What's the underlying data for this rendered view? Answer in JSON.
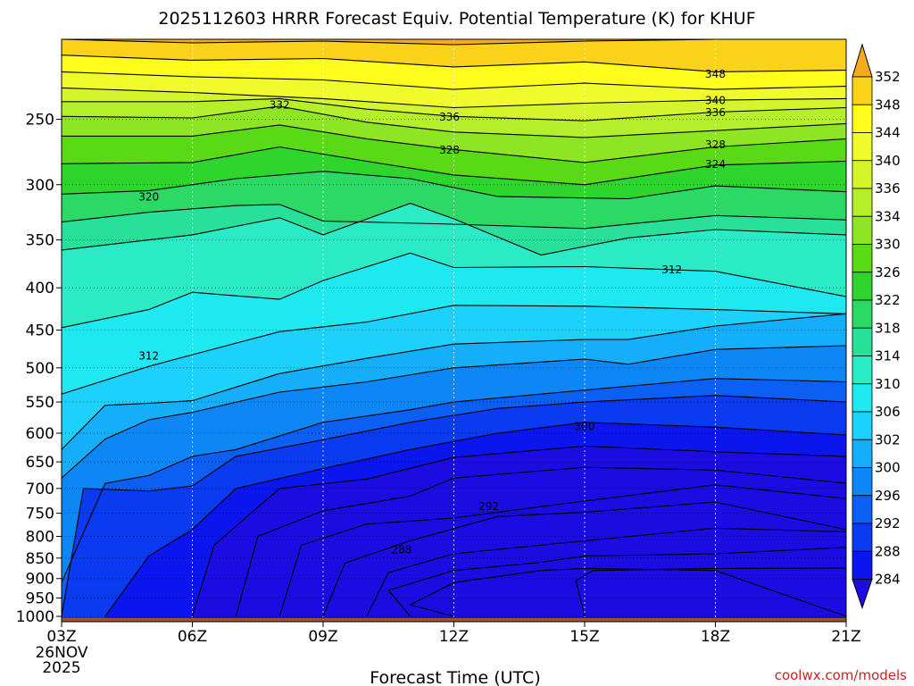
{
  "chart_data": {
    "type": "heatmap",
    "title": "2025112603 HRRR Forecast Equiv. Potential Temperature (K) for KHUF",
    "xlabel": "Forecast Time (UTC)",
    "ylabel": "",
    "x_ticks": [
      "03Z",
      "06Z",
      "09Z",
      "12Z",
      "15Z",
      "18Z",
      "21Z"
    ],
    "x_first_label_extra": [
      "26NOV",
      "2025"
    ],
    "y_scale": "log-pressure (hPa, inverted)",
    "y_ticks": [
      250,
      300,
      350,
      400,
      450,
      500,
      550,
      600,
      650,
      700,
      750,
      800,
      850,
      900,
      950,
      1000
    ],
    "ylim": [
      1015,
      200
    ],
    "grid": true,
    "grid_style": "dotted",
    "colorbar": {
      "labels": [
        352,
        348,
        344,
        340,
        336,
        334,
        330,
        326,
        322,
        318,
        314,
        310,
        306,
        302,
        300,
        296,
        292,
        288,
        284
      ],
      "colors": [
        "#f6aa1e",
        "#fbd21a",
        "#fefc1a",
        "#f1fb2c",
        "#d4f52c",
        "#b5ee2a",
        "#8ee523",
        "#5ada17",
        "#2ed52c",
        "#2bd964",
        "#29e09a",
        "#2bebc7",
        "#1fe9f0",
        "#1cd1fb",
        "#15aefa",
        "#0e87f6",
        "#0b5ff3",
        "#0a3bf0",
        "#0b15ed",
        "#1b0ce2"
      ],
      "extends": "both"
    },
    "contour_labels": [
      {
        "text": "348",
        "time": 18.0,
        "pressure": 220
      },
      {
        "text": "340",
        "time": 18.0,
        "pressure": 237
      },
      {
        "text": "336",
        "time": 18.0,
        "pressure": 245
      },
      {
        "text": "332",
        "time": 8.0,
        "pressure": 240
      },
      {
        "text": "336",
        "time": 11.9,
        "pressure": 248
      },
      {
        "text": "328",
        "time": 11.9,
        "pressure": 272
      },
      {
        "text": "328",
        "time": 18.0,
        "pressure": 268
      },
      {
        "text": "324",
        "time": 18.0,
        "pressure": 283
      },
      {
        "text": "320",
        "time": 5.0,
        "pressure": 310
      },
      {
        "text": "312",
        "time": 17.0,
        "pressure": 380
      },
      {
        "text": "312",
        "time": 5.0,
        "pressure": 483
      },
      {
        "text": "300",
        "time": 15.0,
        "pressure": 588
      },
      {
        "text": "292",
        "time": 12.8,
        "pressure": 735
      },
      {
        "text": "288",
        "time": 10.8,
        "pressure": 830
      }
    ],
    "series": [
      {
        "name": "352",
        "values": [
          [
            3,
            200
          ],
          [
            6,
            202
          ],
          [
            9,
            201
          ],
          [
            12,
            203
          ],
          [
            15,
            201
          ],
          [
            18,
            200
          ],
          [
            21,
            200
          ]
        ]
      },
      {
        "name": "348",
        "values": [
          [
            3,
            209
          ],
          [
            6,
            212
          ],
          [
            9,
            211
          ],
          [
            12,
            216
          ],
          [
            15,
            213
          ],
          [
            18,
            219
          ],
          [
            21,
            218
          ]
        ]
      },
      {
        "name": "344",
        "values": [
          [
            3,
            219
          ],
          [
            6,
            222
          ],
          [
            9,
            224
          ],
          [
            12,
            230
          ],
          [
            15,
            226
          ],
          [
            18,
            230
          ],
          [
            21,
            228
          ]
        ]
      },
      {
        "name": "340",
        "values": [
          [
            3,
            229
          ],
          [
            6,
            232
          ],
          [
            9,
            236
          ],
          [
            12,
            242
          ],
          [
            15,
            239
          ],
          [
            18,
            237
          ],
          [
            21,
            236
          ]
        ]
      },
      {
        "name": "336",
        "values": [
          [
            3,
            238
          ],
          [
            6,
            238
          ],
          [
            8,
            236
          ],
          [
            10,
            243
          ],
          [
            12,
            248
          ],
          [
            15,
            251
          ],
          [
            18,
            245
          ],
          [
            21,
            242
          ]
        ]
      },
      {
        "name": "332",
        "values": [
          [
            3,
            248
          ],
          [
            6,
            249
          ],
          [
            8,
            241
          ],
          [
            10,
            252
          ],
          [
            12,
            259
          ],
          [
            15,
            263
          ],
          [
            18,
            258
          ],
          [
            21,
            253
          ]
        ]
      },
      {
        "name": "328",
        "values": [
          [
            3,
            262
          ],
          [
            6,
            262
          ],
          [
            8,
            254
          ],
          [
            10,
            264
          ],
          [
            12,
            272
          ],
          [
            15,
            282
          ],
          [
            18,
            270
          ],
          [
            21,
            264
          ]
        ]
      },
      {
        "name": "324",
        "values": [
          [
            3,
            283
          ],
          [
            6,
            282
          ],
          [
            8,
            270
          ],
          [
            10,
            281
          ],
          [
            12,
            292
          ],
          [
            15,
            300
          ],
          [
            18,
            284
          ],
          [
            21,
            281
          ]
        ]
      },
      {
        "name": "320",
        "values": [
          [
            3,
            308
          ],
          [
            5,
            305
          ],
          [
            7,
            295
          ],
          [
            9,
            289
          ],
          [
            11,
            295
          ],
          [
            13,
            310
          ],
          [
            16,
            312
          ],
          [
            18,
            301
          ],
          [
            21,
            306
          ]
        ]
      },
      {
        "name": "316",
        "values": [
          [
            3,
            333
          ],
          [
            5,
            324
          ],
          [
            7,
            318
          ],
          [
            8,
            317
          ],
          [
            9,
            332
          ],
          [
            12,
            335
          ],
          [
            15,
            339
          ],
          [
            18,
            327
          ],
          [
            21,
            331
          ]
        ]
      },
      {
        "name": "314",
        "values": [
          [
            3,
            360
          ],
          [
            6,
            345
          ],
          [
            8,
            329
          ],
          [
            9,
            345
          ],
          [
            11,
            316
          ],
          [
            12,
            330
          ],
          [
            14,
            365
          ],
          [
            16,
            348
          ],
          [
            18,
            340
          ],
          [
            21,
            345
          ]
        ]
      },
      {
        "name": "312",
        "values": [
          [
            3,
            447
          ],
          [
            5,
            425
          ],
          [
            6,
            405
          ],
          [
            8,
            413
          ],
          [
            9,
            392
          ],
          [
            11,
            363
          ],
          [
            12,
            378
          ],
          [
            15,
            377
          ],
          [
            18,
            382
          ],
          [
            21,
            410
          ]
        ]
      },
      {
        "name": "310",
        "values": [
          [
            3,
            538
          ],
          [
            5,
            498
          ],
          [
            6,
            482
          ],
          [
            8,
            452
          ],
          [
            10,
            440
          ],
          [
            12,
            420
          ],
          [
            15,
            421
          ],
          [
            18,
            425
          ],
          [
            21,
            430
          ]
        ]
      },
      {
        "name": "308",
        "values": [
          [
            3,
            628
          ],
          [
            4,
            555
          ],
          [
            5,
            552
          ],
          [
            6,
            548
          ],
          [
            8,
            508
          ],
          [
            10,
            487
          ],
          [
            12,
            468
          ],
          [
            15,
            462
          ],
          [
            16,
            462
          ],
          [
            18,
            445
          ],
          [
            21,
            430
          ]
        ]
      },
      {
        "name": "306",
        "values": [
          [
            3,
            680
          ],
          [
            4,
            610
          ],
          [
            5,
            578
          ],
          [
            6,
            566
          ],
          [
            8,
            535
          ],
          [
            10,
            520
          ],
          [
            12,
            500
          ],
          [
            15,
            488
          ],
          [
            16,
            495
          ],
          [
            18,
            475
          ],
          [
            21,
            470
          ]
        ]
      },
      {
        "name": "304",
        "values": [
          [
            3,
            910
          ],
          [
            4,
            690
          ],
          [
            5,
            675
          ],
          [
            6,
            640
          ],
          [
            7,
            628
          ],
          [
            9,
            582
          ],
          [
            11,
            562
          ],
          [
            12,
            550
          ],
          [
            15,
            532
          ],
          [
            18,
            515
          ],
          [
            21,
            520
          ]
        ]
      },
      {
        "name": "302",
        "values": [
          [
            3,
            1000
          ],
          [
            3.5,
            700
          ],
          [
            5,
            705
          ],
          [
            6,
            695
          ],
          [
            7,
            640
          ],
          [
            9,
            611
          ],
          [
            11,
            582
          ],
          [
            13,
            560
          ],
          [
            15,
            550
          ],
          [
            18,
            540
          ],
          [
            21,
            550
          ]
        ]
      },
      {
        "name": "300",
        "values": [
          [
            4,
            1000
          ],
          [
            5,
            845
          ],
          [
            6,
            785
          ],
          [
            7,
            700
          ],
          [
            9,
            662
          ],
          [
            11,
            628
          ],
          [
            13,
            600
          ],
          [
            15,
            582
          ],
          [
            18,
            590
          ],
          [
            21,
            603
          ]
        ]
      },
      {
        "name": "298",
        "values": [
          [
            6,
            1000
          ],
          [
            6.5,
            820
          ],
          [
            8,
            700
          ],
          [
            10,
            682
          ],
          [
            12,
            642
          ],
          [
            15,
            622
          ],
          [
            18,
            632
          ],
          [
            21,
            640
          ]
        ]
      },
      {
        "name": "296",
        "values": [
          [
            7,
            1000
          ],
          [
            7.5,
            800
          ],
          [
            9,
            745
          ],
          [
            11,
            715
          ],
          [
            12,
            680
          ],
          [
            15,
            660
          ],
          [
            18,
            665
          ],
          [
            21,
            690
          ]
        ]
      },
      {
        "name": "294",
        "values": [
          [
            8,
            1000
          ],
          [
            8.5,
            820
          ],
          [
            10,
            773
          ],
          [
            12,
            760
          ],
          [
            15,
            725
          ],
          [
            18,
            693
          ],
          [
            21,
            720
          ]
        ]
      },
      {
        "name": "292",
        "values": [
          [
            9,
            1000
          ],
          [
            9.5,
            862
          ],
          [
            11,
            810
          ],
          [
            13,
            757
          ],
          [
            15,
            748
          ],
          [
            18,
            727
          ],
          [
            21,
            785
          ]
        ]
      },
      {
        "name": "290",
        "values": [
          [
            10,
            1000
          ],
          [
            10.5,
            885
          ],
          [
            12,
            840
          ],
          [
            15,
            810
          ],
          [
            18,
            782
          ],
          [
            21,
            790
          ]
        ]
      },
      {
        "name": "288",
        "values": [
          [
            11,
            1000
          ],
          [
            10.5,
            930
          ],
          [
            12,
            880
          ],
          [
            14,
            860
          ],
          [
            15,
            845
          ],
          [
            18,
            840
          ],
          [
            21,
            825
          ]
        ]
      },
      {
        "name": "286",
        "values": [
          [
            12,
            1000
          ],
          [
            11,
            968
          ],
          [
            12,
            910
          ],
          [
            14,
            880
          ],
          [
            15,
            875
          ],
          [
            18,
            880
          ],
          [
            21,
            1000
          ]
        ]
      },
      {
        "name": "284",
        "values": [
          [
            15,
            1000
          ],
          [
            14.8,
            905
          ],
          [
            15.2,
            880
          ],
          [
            18,
            875
          ],
          [
            21,
            874
          ]
        ]
      }
    ]
  },
  "credit": "coolwx.com/models"
}
